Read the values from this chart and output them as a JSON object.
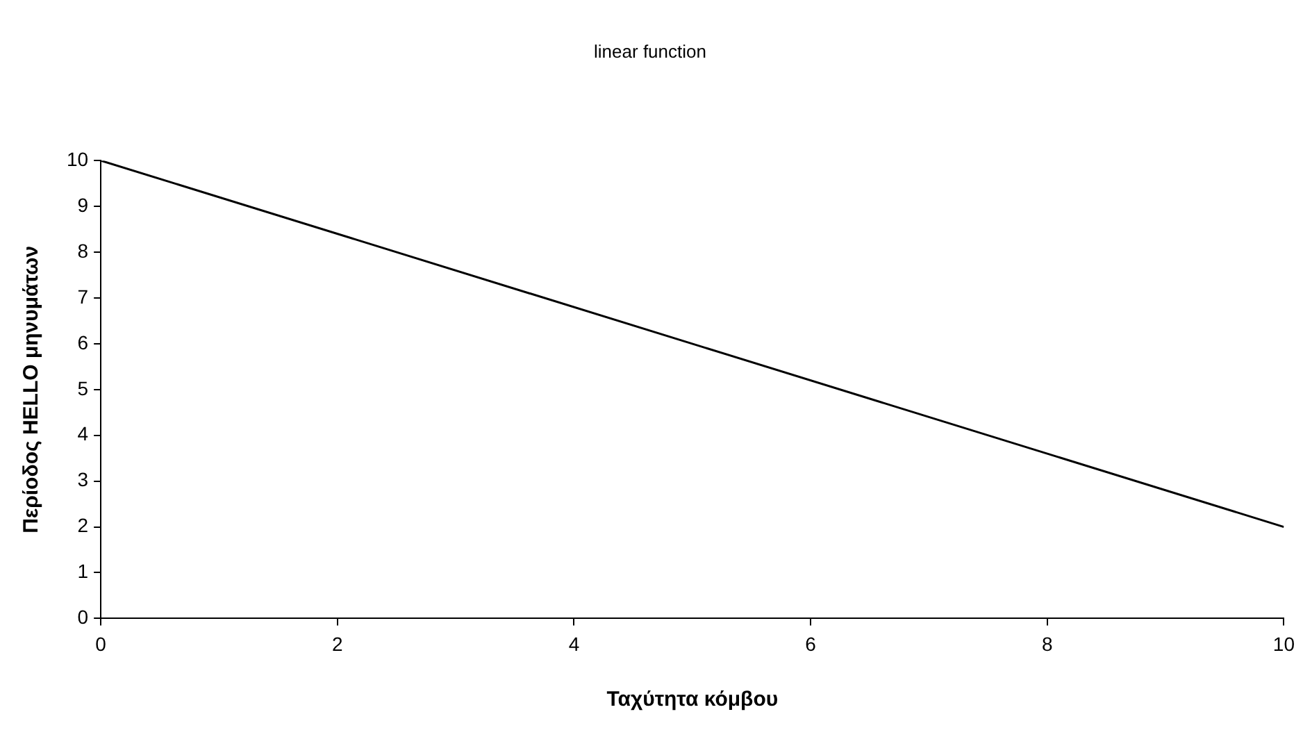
{
  "chart_data": {
    "type": "line",
    "title": "linear function",
    "xlabel": "Ταχύτητα κόμβου",
    "ylabel": "Περίοδος HELLO μηνυμάτων",
    "x": [
      0,
      10
    ],
    "series": [
      {
        "color": "#000000",
        "values": [
          10,
          2
        ]
      }
    ],
    "xlim": [
      0,
      10
    ],
    "xticks": [
      0,
      2,
      4,
      6,
      8,
      10
    ],
    "ylim": [
      0,
      10
    ],
    "yticks": [
      0,
      1,
      2,
      3,
      4,
      5,
      6,
      7,
      8,
      9,
      10
    ],
    "grid": false,
    "legend": false,
    "marker": "none",
    "line_style": "solid"
  }
}
